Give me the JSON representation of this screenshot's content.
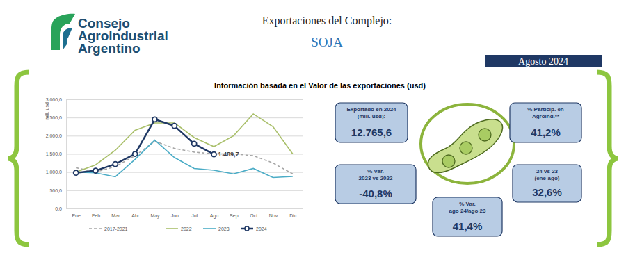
{
  "header": {
    "logo_lines": [
      "Consejo",
      "Agroindustrial",
      "Argentino"
    ],
    "title": "Exportaciones del Complejo:",
    "subtitle": "SOJA",
    "period": "Agosto 2024"
  },
  "chart_data": {
    "type": "line",
    "title": "Información basada en el Valor de las exportaciones (usd)",
    "y_label": "mill. usd",
    "categories": [
      "Ene",
      "Feb",
      "Mar",
      "Abr",
      "May",
      "Jun",
      "Jul",
      "Ago",
      "Sep",
      "Oct",
      "Nov",
      "Dic"
    ],
    "series": [
      {
        "name": "2017-2021",
        "color": "#a6a6a6",
        "line_style": "dashed",
        "marker": "none",
        "values": [
          1120,
          1000,
          1150,
          1450,
          1850,
          1650,
          1550,
          1500,
          1500,
          1450,
          1250,
          950
        ]
      },
      {
        "name": "2022",
        "color": "#a9bf6a",
        "line_style": "solid",
        "marker": "none",
        "values": [
          1000,
          1200,
          1600,
          2150,
          2350,
          2350,
          1950,
          1700,
          2000,
          2600,
          2250,
          1500
        ]
      },
      {
        "name": "2023",
        "color": "#4bacc6",
        "line_style": "solid",
        "marker": "none",
        "values": [
          1000,
          980,
          870,
          1350,
          1880,
          1400,
          1100,
          1050,
          950,
          1100,
          850,
          880
        ]
      },
      {
        "name": "2024",
        "color": "#1f3864",
        "line_style": "solid",
        "marker": "circle",
        "data_labels": true,
        "values": [
          980,
          1040,
          1220,
          1500,
          2450,
          2270,
          1780,
          1489.7,
          null,
          null,
          null,
          null
        ],
        "value_labels": [
          null,
          null,
          null,
          null,
          null,
          null,
          null,
          "1.489,7",
          null,
          null,
          null,
          null
        ]
      }
    ],
    "ylim": [
      0,
      3000
    ],
    "yticks": [
      {
        "value": 0,
        "label": "0,0"
      },
      {
        "value": 500,
        "label": "500,0"
      },
      {
        "value": 1000,
        "label": "1.000,0"
      },
      {
        "value": 1500,
        "label": "1.500,0"
      },
      {
        "value": 2000,
        "label": "2.000,0"
      },
      {
        "value": 2500,
        "label": "2.500,0"
      },
      {
        "value": 3000,
        "label": "3.000,0"
      }
    ],
    "grid": true,
    "legend": "bottom"
  },
  "kpis": [
    {
      "label": [
        "Exportado en 2024",
        "(mill. usd):"
      ],
      "value": "12.765,6"
    },
    {
      "label": [
        "% Particip. en",
        "Agroind.**"
      ],
      "value": "41,2%"
    },
    {
      "label": [
        "% Var.",
        "2023 vs 2022"
      ],
      "value": "-40,8%"
    },
    {
      "label": [
        "24 vs 23",
        "(ene-ago)"
      ],
      "value": "32,6%"
    },
    {
      "label": [
        "% Var.",
        "ago 24/ago 23"
      ],
      "value": "41,4%"
    }
  ]
}
